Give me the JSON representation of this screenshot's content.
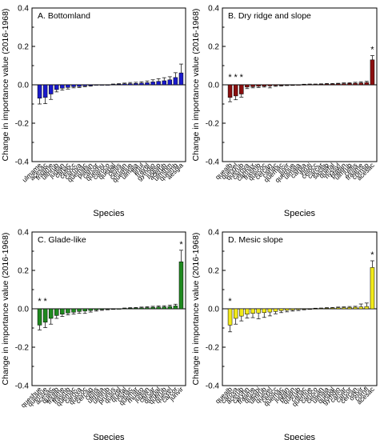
{
  "colors": {
    "A": "#1a1acc",
    "B": "#8b0f0f",
    "C": "#1f8a1f",
    "D": "#f2ea1a",
    "axis": "#000000"
  },
  "chart_data": [
    {
      "type": "bar",
      "title": "A. Bottomland",
      "xlabel": "Species",
      "ylabel": "Change in importance value (2016-1968)",
      "ylim": [
        -0.4,
        0.4
      ],
      "yticks": [
        "-0.4",
        "-0.2",
        "0.0",
        "0.2",
        "0.4"
      ],
      "grid": false,
      "categories": [
        "ulmame",
        "acesac",
        "fraame",
        "ulmrub",
        "juglan",
        "carlac",
        "celocc",
        "carova",
        "quemac",
        "platan",
        "carcor",
        "queshu",
        "caroco",
        "quepal",
        "celtis",
        "cercan",
        "quemue",
        "ulmala",
        "lirtul",
        "fravel",
        "gymdio",
        "juglsp",
        "acerub",
        "ulmthm",
        "queimb",
        "aesgla"
      ],
      "values": [
        -0.07,
        -0.066,
        -0.048,
        -0.025,
        -0.018,
        -0.014,
        -0.01,
        -0.009,
        -0.006,
        -0.004,
        0.0,
        0.0,
        0.0,
        0.002,
        0.003,
        0.005,
        0.006,
        0.007,
        0.009,
        0.011,
        0.015,
        0.018,
        0.021,
        0.026,
        0.038,
        0.062
      ],
      "errors": [
        0.03,
        0.032,
        0.028,
        0.012,
        0.01,
        0.008,
        0.006,
        0.005,
        0.004,
        0.003,
        0.0,
        0.0,
        0.0,
        0.002,
        0.003,
        0.004,
        0.006,
        0.006,
        0.007,
        0.009,
        0.011,
        0.014,
        0.016,
        0.016,
        0.025,
        0.046
      ],
      "significant": []
    },
    {
      "type": "bar",
      "title": "B. Dry ridge and slope",
      "xlabel": "Species",
      "ylabel": "Change in importance value (2016-1968)",
      "ylim": [
        -0.4,
        0.4
      ],
      "yticks": [
        "-0.4",
        "-0.2",
        "0.0",
        "0.2",
        "0.4"
      ],
      "grid": false,
      "categories": [
        "quealb",
        "quevel",
        "querub",
        "carova",
        "carmax",
        "frasmb",
        "quecoc",
        "cercan",
        "carlac",
        "quemac",
        "juvir",
        "quemue",
        "ulmala",
        "carpla",
        "viruti",
        "celocc",
        "carcar",
        "sasalb",
        "quefal",
        "nyssyl",
        "platan",
        "ulmrub",
        "celtis",
        "fraame",
        "cornsp",
        "acesac"
      ],
      "values": [
        -0.066,
        -0.058,
        -0.048,
        -0.012,
        -0.01,
        -0.008,
        -0.007,
        -0.006,
        -0.004,
        -0.003,
        -0.002,
        -0.001,
        0.0,
        0.001,
        0.002,
        0.002,
        0.003,
        0.004,
        0.004,
        0.005,
        0.006,
        0.007,
        0.008,
        0.01,
        0.012,
        0.13
      ],
      "errors": [
        0.022,
        0.02,
        0.016,
        0.008,
        0.006,
        0.006,
        0.005,
        0.01,
        0.004,
        0.003,
        0.002,
        0.002,
        0.0,
        0.002,
        0.002,
        0.002,
        0.002,
        0.003,
        0.003,
        0.003,
        0.004,
        0.004,
        0.005,
        0.006,
        0.006,
        0.022
      ],
      "significant": [
        0,
        1,
        2,
        25
      ]
    },
    {
      "type": "bar",
      "title": "C. Glade-like",
      "xlabel": "Species",
      "ylabel": "Change in importance value (2016-1968)",
      "ylim": [
        -0.4,
        0.4
      ],
      "yticks": [
        "-0.4",
        "-0.2",
        "0.0",
        "0.2",
        "0.4"
      ],
      "grid": false,
      "categories": [
        "queshue",
        "quemue",
        "acesac",
        "quealb",
        "fraame",
        "frasmb",
        "quemac",
        "carova",
        "quecoc",
        "cercan",
        "celtis",
        "ulmala",
        "ulmrub",
        "prunus",
        "quevel",
        "quefal",
        "carlac",
        "quemar",
        "rhuaro",
        "juglan",
        "carcar",
        "quepal",
        "querub",
        "quevel",
        "carcor",
        "junvir"
      ],
      "values": [
        -0.085,
        -0.07,
        -0.05,
        -0.035,
        -0.028,
        -0.022,
        -0.018,
        -0.014,
        -0.012,
        -0.009,
        -0.006,
        -0.004,
        -0.002,
        -0.001,
        0.0,
        0.002,
        0.003,
        0.004,
        0.005,
        0.006,
        0.008,
        0.009,
        0.01,
        0.012,
        0.015,
        0.245
      ],
      "errors": [
        0.025,
        0.028,
        0.03,
        0.015,
        0.012,
        0.01,
        0.01,
        0.01,
        0.012,
        0.008,
        0.006,
        0.004,
        0.003,
        0.002,
        0.0,
        0.002,
        0.003,
        0.003,
        0.004,
        0.005,
        0.005,
        0.006,
        0.006,
        0.007,
        0.009,
        0.06
      ],
      "significant": [
        0,
        1,
        25
      ]
    },
    {
      "type": "bar",
      "title": "D. Mesic slope",
      "xlabel": "Species",
      "ylabel": "Change in importance value (2016-1968)",
      "ylim": [
        -0.4,
        0.4
      ],
      "yticks": [
        "-0.4",
        "-0.2",
        "0.0",
        "0.2",
        "0.4"
      ],
      "grid": false,
      "categories": [
        "quealb",
        "carova",
        "acerub",
        "caryhn",
        "fraame",
        "quesbi",
        "ulmrub",
        "quevel",
        "celocc",
        "quemac",
        "juglan",
        "platan",
        "querub",
        "carlac",
        "quemue",
        "caroco",
        "cercan",
        "ulmala",
        "quepal",
        "gymdio",
        "carcar",
        "carcor",
        "cercan",
        "ostvir",
        "cornfl",
        "acesac"
      ],
      "values": [
        -0.085,
        -0.05,
        -0.038,
        -0.028,
        -0.024,
        -0.022,
        -0.02,
        -0.017,
        -0.014,
        -0.01,
        -0.008,
        -0.006,
        -0.004,
        -0.002,
        -0.001,
        0.001,
        0.002,
        0.003,
        0.004,
        0.005,
        0.006,
        0.007,
        0.008,
        0.01,
        0.012,
        0.215
      ],
      "errors": [
        0.035,
        0.03,
        0.025,
        0.02,
        0.022,
        0.03,
        0.025,
        0.02,
        0.012,
        0.01,
        0.008,
        0.006,
        0.005,
        0.003,
        0.002,
        0.002,
        0.002,
        0.003,
        0.003,
        0.004,
        0.004,
        0.005,
        0.005,
        0.015,
        0.018,
        0.035
      ],
      "significant": [
        0,
        25
      ]
    }
  ]
}
